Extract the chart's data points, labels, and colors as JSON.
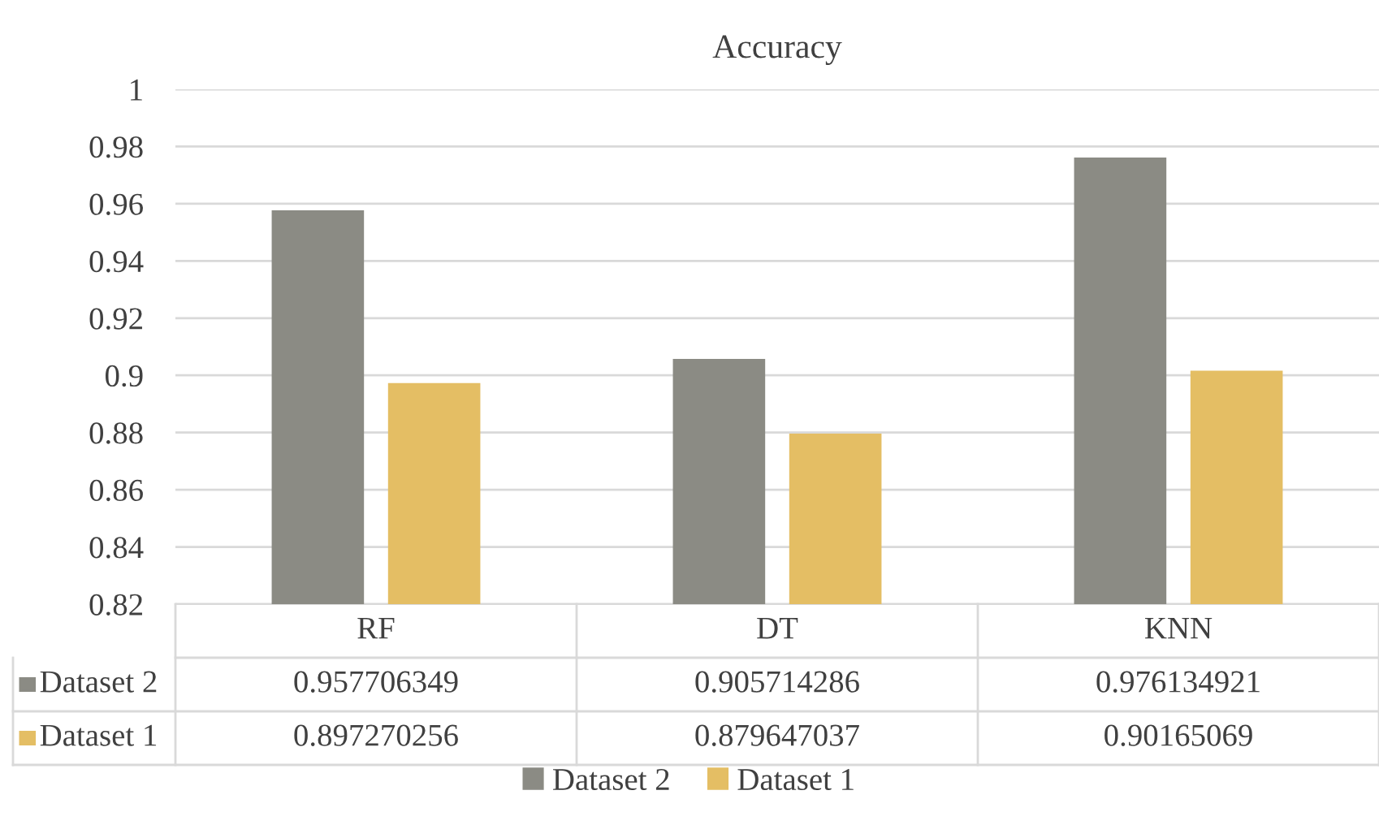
{
  "chart_data": {
    "type": "bar",
    "title": "Accuracy",
    "categories": [
      "RF",
      "DT",
      "KNN"
    ],
    "series": [
      {
        "name": "Dataset 2",
        "color": "#8b8b84",
        "values": [
          0.957706349,
          0.905714286,
          0.976134921
        ]
      },
      {
        "name": "Dataset 1",
        "color": "#e4be64",
        "values": [
          0.897270256,
          0.879647037,
          0.90165069
        ]
      }
    ],
    "ylim": [
      0.82,
      1
    ],
    "yticks": [
      0.82,
      0.84,
      0.86,
      0.88,
      0.9,
      0.92,
      0.94,
      0.96,
      0.98,
      1
    ],
    "grid": "y",
    "legend": "bottom",
    "data_labels": true
  }
}
